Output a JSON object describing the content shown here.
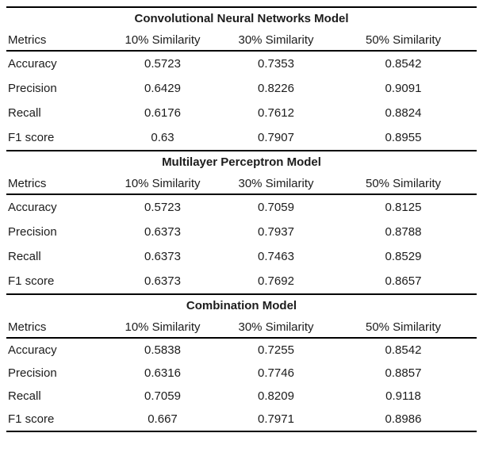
{
  "page": {
    "background_color": "#ffffff",
    "text_color": "#1c1c1c",
    "rule_color": "#000000"
  },
  "tables": [
    {
      "title": "Convolutional Neural Networks Model",
      "headers": [
        "Metrics",
        "10% Similarity",
        "30% Similarity",
        "50% Similarity"
      ],
      "rows": [
        {
          "metric": "Accuracy",
          "values": [
            "0.5723",
            "0.7353",
            "0.8542"
          ]
        },
        {
          "metric": "Precision",
          "values": [
            "0.6429",
            "0.8226",
            "0.9091"
          ]
        },
        {
          "metric": "Recall",
          "values": [
            "0.6176",
            "0.7612",
            "0.8824"
          ]
        },
        {
          "metric": "F1 score",
          "values": [
            "0.63",
            "0.7907",
            "0.8955"
          ]
        }
      ]
    },
    {
      "title": "Multilayer Perceptron Model",
      "headers": [
        "Metrics",
        "10% Similarity",
        "30% Similarity",
        "50% Similarity"
      ],
      "rows": [
        {
          "metric": "Accuracy",
          "values": [
            "0.5723",
            "0.7059",
            "0.8125"
          ]
        },
        {
          "metric": "Precision",
          "values": [
            "0.6373",
            "0.7937",
            "0.8788"
          ]
        },
        {
          "metric": "Recall",
          "values": [
            "0.6373",
            "0.7463",
            "0.8529"
          ]
        },
        {
          "metric": "F1 score",
          "values": [
            "0.6373",
            "0.7692",
            "0.8657"
          ]
        }
      ]
    },
    {
      "title": "Combination Model",
      "headers": [
        "Metrics",
        "10% Similarity",
        "30% Similarity",
        "50% Similarity"
      ],
      "rows": [
        {
          "metric": "Accuracy",
          "values": [
            "0.5838",
            "0.7255",
            "0.8542"
          ]
        },
        {
          "metric": "Precision",
          "values": [
            "0.6316",
            "0.7746",
            "0.8857"
          ]
        },
        {
          "metric": "Recall",
          "values": [
            "0.7059",
            "0.8209",
            "0.9118"
          ]
        },
        {
          "metric": "F1 score",
          "values": [
            "0.667",
            "0.7971",
            "0.8986"
          ]
        }
      ]
    }
  ]
}
